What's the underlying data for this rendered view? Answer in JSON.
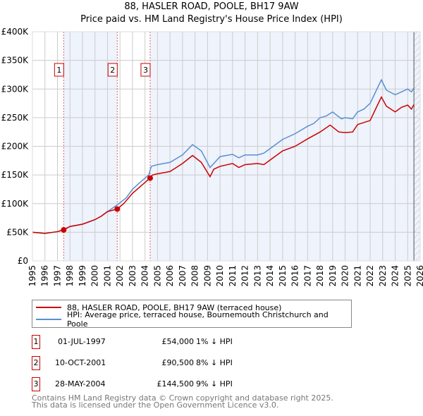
{
  "header": {
    "title": "88, HASLER ROAD, POOLE, BH17 9AW",
    "subtitle": "Price paid vs. HM Land Registry's House Price Index (HPI)"
  },
  "chart_data": {
    "type": "line",
    "title": "88, HASLER ROAD, POOLE, BH17 9AW — Price paid vs. HM Land Registry's House Price Index (HPI)",
    "xlim": [
      1995,
      2026
    ],
    "ylim": [
      0,
      400000
    ],
    "yticks": [
      {
        "v": 0,
        "label": "£0"
      },
      {
        "v": 50000,
        "label": "£50K"
      },
      {
        "v": 100000,
        "label": "£100K"
      },
      {
        "v": 150000,
        "label": "£150K"
      },
      {
        "v": 200000,
        "label": "£200K"
      },
      {
        "v": 250000,
        "label": "£250K"
      },
      {
        "v": 300000,
        "label": "£300K"
      },
      {
        "v": 350000,
        "label": "£350K"
      },
      {
        "v": 400000,
        "label": "£400K"
      }
    ],
    "xticks": [
      "1995",
      "1996",
      "1997",
      "1998",
      "1999",
      "2000",
      "2001",
      "2002",
      "2003",
      "2004",
      "2005",
      "2006",
      "2007",
      "2008",
      "2009",
      "2010",
      "2011",
      "2012",
      "2013",
      "2014",
      "2015",
      "2016",
      "2017",
      "2018",
      "2019",
      "2020",
      "2021",
      "2022",
      "2023",
      "2024",
      "2025",
      "2026"
    ],
    "series": [
      {
        "name": "88, HASLER ROAD, POOLE, BH17 9AW (terraced house)",
        "color": "#cc0000",
        "x": [
          1995,
          1996,
          1997,
          1997.5,
          1998,
          1999,
          2000,
          2000.5,
          2001,
          2001.78,
          2002.3,
          2003,
          2004.4,
          2004.6,
          2005,
          2006,
          2007,
          2007.8,
          2008.5,
          2009.2,
          2009.5,
          2010,
          2011,
          2011.5,
          2012,
          2013,
          2013.5,
          2014,
          2015,
          2016,
          2017,
          2018,
          2018.8,
          2019.5,
          2020,
          2020.6,
          2021,
          2022,
          2022.5,
          2022.9,
          2023.3,
          2024,
          2024.5,
          2025,
          2025.3,
          2025.5
        ],
        "y": [
          50000,
          48000,
          51000,
          54000,
          60000,
          64000,
          72000,
          78000,
          86000,
          90500,
          100000,
          118000,
          144500,
          150000,
          152000,
          156000,
          170000,
          184000,
          172000,
          147000,
          160000,
          165000,
          170000,
          163000,
          168000,
          170000,
          168000,
          176000,
          192000,
          200000,
          213000,
          225000,
          237000,
          225000,
          224000,
          225000,
          238000,
          245000,
          268000,
          286000,
          270000,
          260000,
          268000,
          272000,
          265000,
          273000
        ]
      },
      {
        "name": "HPI: Average price, terraced house, Bournemouth Christchurch and Poole",
        "color": "#5b8fd0",
        "x": [
          1995,
          1996,
          1997,
          1997.5,
          1998,
          1999,
          2000,
          2000.5,
          2001,
          2001.8,
          2002.5,
          2003,
          2003.5,
          2004.3,
          2004.5,
          2005,
          2006,
          2007,
          2007.8,
          2008.5,
          2009.2,
          2009.5,
          2010,
          2011,
          2011.5,
          2012,
          2013,
          2013.5,
          2014,
          2015,
          2016,
          2017,
          2017.5,
          2018,
          2018.5,
          2019,
          2019.7,
          2020,
          2020.6,
          2021,
          2021.5,
          2022,
          2022.5,
          2022.9,
          2023.3,
          2024,
          2024.5,
          2025,
          2025.3,
          2025.5
        ],
        "y": [
          50000,
          48000,
          51000,
          55000,
          60000,
          64000,
          72000,
          78000,
          86000,
          98000,
          110000,
          125000,
          135000,
          150000,
          165000,
          168000,
          172000,
          185000,
          203000,
          192000,
          163000,
          170000,
          182000,
          186000,
          180000,
          185000,
          185000,
          188000,
          196000,
          212000,
          222000,
          235000,
          240000,
          250000,
          253000,
          260000,
          248000,
          250000,
          248000,
          260000,
          265000,
          275000,
          298000,
          316000,
          298000,
          290000,
          295000,
          300000,
          295000,
          302000
        ]
      }
    ],
    "sales": [
      {
        "n": "1",
        "date": "01-JUL-1997",
        "x": 1997.5,
        "price": "£54,000",
        "value": 54000,
        "hpi": "1% ↓ HPI"
      },
      {
        "n": "2",
        "date": "10-OCT-2001",
        "x": 2001.78,
        "price": "£90,500",
        "value": 90500,
        "hpi": "8% ↓ HPI"
      },
      {
        "n": "3",
        "date": "28-MAY-2004",
        "x": 2004.41,
        "price": "£144,500",
        "value": 144500,
        "hpi": "9% ↓ HPI"
      }
    ],
    "legend": "bottom"
  },
  "footer": {
    "line1": "Contains HM Land Registry data © Crown copyright and database right 2025.",
    "line2": "This data is licensed under the Open Government Licence v3.0."
  }
}
